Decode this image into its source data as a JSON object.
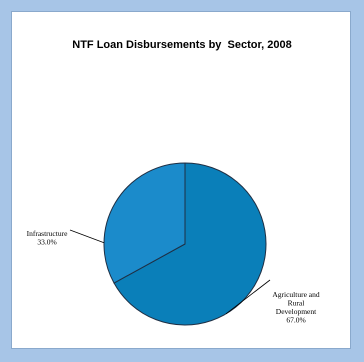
{
  "chart_data": {
    "type": "pie",
    "title": "NTF Loan Disbursements by  Sector, 2008",
    "slices": [
      {
        "label_lines": [
          "Agriculture and",
          "Rural",
          "Development"
        ],
        "value": 67.0,
        "value_label": "67.0%",
        "color": "#0a7fb9"
      },
      {
        "label_lines": [
          "Infrastructure"
        ],
        "value": 33.0,
        "value_label": "33.0%",
        "color": "#1b8bcb"
      }
    ]
  },
  "colors": {
    "background": "#a7c5e7",
    "panel": "#ffffff",
    "slice_edge": "#1f2f44"
  }
}
